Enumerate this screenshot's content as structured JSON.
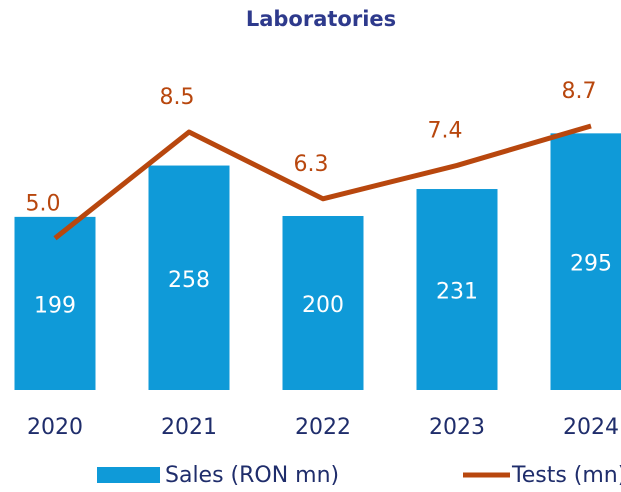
{
  "chart_data": {
    "type": "bar-line",
    "title": "Laboratories",
    "categories": [
      "2020",
      "2021",
      "2022",
      "2023",
      "2024"
    ],
    "series": [
      {
        "name": "Sales (RON mn)",
        "type": "bar",
        "color": "#0f9ad8",
        "values": [
          199,
          258,
          200,
          231,
          295
        ]
      },
      {
        "name": "Tests (mn)",
        "type": "line",
        "axis": "y2",
        "color": "#b8470e",
        "values": [
          5.0,
          8.5,
          6.3,
          7.4,
          8.7
        ],
        "value_labels": [
          "5.0",
          "8.5",
          "6.3",
          "7.4",
          "8.7"
        ]
      }
    ],
    "ylim": [
      0,
      300
    ],
    "y2lim": [
      0,
      8.6
    ],
    "legend": "bottom"
  }
}
